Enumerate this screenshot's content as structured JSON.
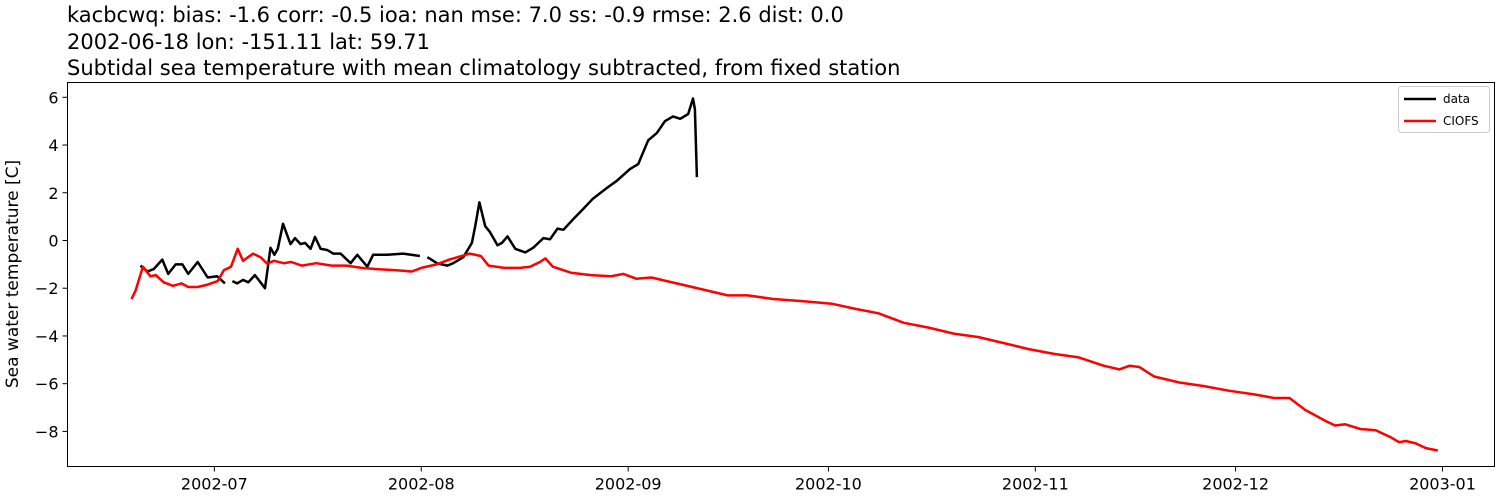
{
  "chart_data": {
    "type": "line",
    "title_lines": [
      "kacbcwq: bias: -1.6  corr: -0.5  ioa: nan  mse: 7.0  ss: -0.9  rmse: 2.6  dist: 0.0",
      "2002-06-18 lon: -151.11 lat: 59.71",
      "Subtidal sea temperature with mean climatology subtracted, from fixed station"
    ],
    "xlabel": "",
    "ylabel": "Sea water temperature [C]",
    "xlim": [
      "2002-06-09T00:00",
      "2003-01-08T19:00"
    ],
    "ylim": [
      -9.47,
      6.62
    ],
    "x_ticks": [
      {
        "date": "2002-07-01",
        "label": "2002-07"
      },
      {
        "date": "2002-08-01",
        "label": "2002-08"
      },
      {
        "date": "2002-09-01",
        "label": "2002-09"
      },
      {
        "date": "2002-10-01",
        "label": "2002-10"
      },
      {
        "date": "2002-11-01",
        "label": "2002-11"
      },
      {
        "date": "2002-12-01",
        "label": "2002-12"
      },
      {
        "date": "2003-01-01",
        "label": "2003-01"
      }
    ],
    "y_ticks": [
      6,
      4,
      2,
      0,
      -2,
      -4,
      -6,
      -8
    ],
    "y_tick_labels": [
      "6",
      "4",
      "2",
      "0",
      "−2",
      "−4",
      "−6",
      "−8"
    ],
    "grid": false,
    "legend_position": "top-right",
    "series": [
      {
        "name": "data",
        "color": "#000000",
        "points": [
          [
            "2002-06-19T22:00",
            -1.05
          ],
          [
            "2002-06-21T00:00",
            -1.3
          ],
          [
            "2002-06-21T22:00",
            -1.2
          ],
          [
            "2002-06-23T05:00",
            -0.8
          ],
          [
            "2002-06-24T02:00",
            -1.4
          ],
          [
            "2002-06-25T05:00",
            -1.0
          ],
          [
            "2002-06-26T05:00",
            -1.0
          ],
          [
            "2002-06-27T02:00",
            -1.4
          ],
          [
            "2002-06-28T12:00",
            -0.9
          ],
          [
            "2002-06-30T00:00",
            -1.55
          ],
          [
            "2002-07-01T10:00",
            -1.5
          ],
          [
            "2002-07-02T05:00",
            -1.7
          ],
          [
            "2002-07-02T14:00",
            -1.8
          ],
          [
            null,
            null
          ],
          [
            "2002-07-03T17:00",
            -1.7
          ],
          [
            "2002-07-04T10:00",
            -1.8
          ],
          [
            "2002-07-05T07:00",
            -1.65
          ],
          [
            "2002-07-06T02:00",
            -1.75
          ],
          [
            "2002-07-07T02:00",
            -1.45
          ],
          [
            "2002-07-07T22:00",
            -1.75
          ],
          [
            "2002-07-08T14:00",
            -2.0
          ],
          [
            "2002-07-09T10:00",
            -0.3
          ],
          [
            "2002-07-10T00:00",
            -0.6
          ],
          [
            "2002-07-10T12:00",
            -0.35
          ],
          [
            "2002-07-11T07:00",
            0.7
          ],
          [
            "2002-07-12T10:00",
            -0.15
          ],
          [
            "2002-07-13T02:00",
            0.1
          ],
          [
            "2002-07-13T22:00",
            -0.15
          ],
          [
            "2002-07-14T14:00",
            -0.1
          ],
          [
            "2002-07-15T10:00",
            -0.35
          ],
          [
            "2002-07-16T02:00",
            0.15
          ],
          [
            "2002-07-16T22:00",
            -0.35
          ],
          [
            "2002-07-17T22:00",
            -0.4
          ],
          [
            "2002-07-18T19:00",
            -0.55
          ],
          [
            "2002-07-19T22:00",
            -0.55
          ],
          [
            "2002-07-21T10:00",
            -0.95
          ],
          [
            "2002-07-22T10:00",
            -0.6
          ],
          [
            "2002-07-23T22:00",
            -1.1
          ],
          [
            "2002-07-24T19:00",
            -0.6
          ],
          [
            "2002-07-26T22:00",
            -0.6
          ],
          [
            "2002-07-29T07:00",
            -0.55
          ],
          [
            "2002-07-31T19:00",
            -0.65
          ],
          [
            null,
            null
          ],
          [
            "2002-08-01T22:00",
            -0.7
          ],
          [
            "2002-08-03T10:00",
            -0.96
          ],
          [
            "2002-08-04T22:00",
            -1.05
          ],
          [
            "2002-08-05T19:00",
            -0.95
          ],
          [
            "2002-08-07T07:00",
            -0.7
          ],
          [
            "2002-08-08T14:00",
            -0.1
          ],
          [
            "2002-08-09T02:00",
            0.6
          ],
          [
            "2002-08-09T17:00",
            1.6
          ],
          [
            "2002-08-10T14:00",
            0.6
          ],
          [
            "2002-08-11T07:00",
            0.35
          ],
          [
            "2002-08-12T10:00",
            -0.2
          ],
          [
            "2002-08-13T02:00",
            -0.1
          ],
          [
            "2002-08-13T22:00",
            0.17
          ],
          [
            "2002-08-15T02:00",
            -0.35
          ],
          [
            "2002-08-16T14:00",
            -0.5
          ],
          [
            "2002-08-17T19:00",
            -0.3
          ],
          [
            "2002-08-19T07:00",
            0.1
          ],
          [
            "2002-08-20T07:00",
            0.05
          ],
          [
            "2002-08-21T10:00",
            0.5
          ],
          [
            "2002-08-22T07:00",
            0.45
          ],
          [
            "2002-08-23T19:00",
            0.9
          ],
          [
            "2002-08-25T07:00",
            1.33
          ],
          [
            "2002-08-26T17:00",
            1.75
          ],
          [
            "2002-08-28T19:00",
            2.2
          ],
          [
            "2002-08-30T07:00",
            2.5
          ],
          [
            "2002-09-01T07:00",
            3.0
          ],
          [
            "2002-09-02T12:00",
            3.2
          ],
          [
            "2002-09-04T00:00",
            4.2
          ],
          [
            "2002-09-05T07:00",
            4.5
          ],
          [
            "2002-09-06T12:00",
            5.0
          ],
          [
            "2002-09-07T17:00",
            5.2
          ],
          [
            "2002-09-08T19:00",
            5.1
          ],
          [
            "2002-09-10T00:00",
            5.3
          ],
          [
            "2002-09-10T17:00",
            5.95
          ],
          [
            "2002-09-11T00:00",
            5.5
          ],
          [
            "2002-09-11T07:00",
            2.65
          ]
        ]
      },
      {
        "name": "CIOFS",
        "color": "#ff0000",
        "points": [
          [
            "2002-06-18T14:00",
            -2.45
          ],
          [
            "2002-06-19T05:00",
            -2.1
          ],
          [
            "2002-06-20T07:00",
            -1.1
          ],
          [
            "2002-06-21T10:00",
            -1.5
          ],
          [
            "2002-06-22T05:00",
            -1.45
          ],
          [
            "2002-06-23T10:00",
            -1.75
          ],
          [
            "2002-06-24T19:00",
            -1.9
          ],
          [
            "2002-06-26T02:00",
            -1.8
          ],
          [
            "2002-06-27T02:00",
            -1.95
          ],
          [
            "2002-06-28T12:00",
            -1.95
          ],
          [
            "2002-06-30T00:00",
            -1.85
          ],
          [
            "2002-07-01T12:00",
            -1.7
          ],
          [
            "2002-07-02T10:00",
            -1.25
          ],
          [
            "2002-07-03T12:00",
            -1.1
          ],
          [
            "2002-07-04T12:00",
            -0.35
          ],
          [
            "2002-07-05T07:00",
            -0.85
          ],
          [
            "2002-07-06T19:00",
            -0.55
          ],
          [
            "2002-07-07T22:00",
            -0.7
          ],
          [
            "2002-07-08T22:00",
            -0.97
          ],
          [
            "2002-07-09T22:00",
            -0.85
          ],
          [
            "2002-07-11T10:00",
            -0.95
          ],
          [
            "2002-07-12T12:00",
            -0.9
          ],
          [
            "2002-07-14T02:00",
            -1.05
          ],
          [
            "2002-07-16T07:00",
            -0.95
          ],
          [
            "2002-07-18T14:00",
            -1.05
          ],
          [
            "2002-07-20T19:00",
            -1.05
          ],
          [
            "2002-07-23T02:00",
            -1.15
          ],
          [
            "2002-07-25T07:00",
            -1.2
          ],
          [
            "2002-07-28T07:00",
            -1.25
          ],
          [
            "2002-07-30T14:00",
            -1.3
          ],
          [
            "2002-08-01T00:00",
            -1.15
          ],
          [
            "2002-08-03T07:00",
            -1.0
          ],
          [
            "2002-08-05T05:00",
            -0.8
          ],
          [
            "2002-08-08T07:00",
            -0.55
          ],
          [
            "2002-08-09T22:00",
            -0.65
          ],
          [
            "2002-08-11T02:00",
            -1.05
          ],
          [
            "2002-08-13T10:00",
            -1.15
          ],
          [
            "2002-08-15T19:00",
            -1.15
          ],
          [
            "2002-08-17T07:00",
            -1.1
          ],
          [
            "2002-08-18T19:00",
            -0.9
          ],
          [
            "2002-08-19T14:00",
            -0.75
          ],
          [
            "2002-08-20T17:00",
            -1.1
          ],
          [
            "2002-08-23T10:00",
            -1.35
          ],
          [
            "2002-08-26T10:00",
            -1.45
          ],
          [
            "2002-08-29T10:00",
            -1.5
          ],
          [
            "2002-08-31T07:00",
            -1.4
          ],
          [
            "2002-09-02T05:00",
            -1.6
          ],
          [
            "2002-09-04T12:00",
            -1.55
          ],
          [
            "2002-09-06T19:00",
            -1.7
          ],
          [
            "2002-09-09T02:00",
            -1.85
          ],
          [
            "2002-09-12T02:00",
            -2.05
          ],
          [
            "2002-09-15T22:00",
            -2.3
          ],
          [
            "2002-09-18T22:00",
            -2.3
          ],
          [
            "2002-09-22T17:00",
            -2.45
          ],
          [
            "2002-09-27T07:00",
            -2.55
          ],
          [
            "2002-10-01T12:00",
            -2.65
          ],
          [
            "2002-10-04T19:00",
            -2.85
          ],
          [
            "2002-10-08T12:00",
            -3.05
          ],
          [
            "2002-10-12T07:00",
            -3.45
          ],
          [
            "2002-10-16T00:00",
            -3.65
          ],
          [
            "2002-10-19T19:00",
            -3.9
          ],
          [
            "2002-10-23T12:00",
            -4.05
          ],
          [
            "2002-10-27T07:00",
            -4.3
          ],
          [
            "2002-10-31T00:00",
            -4.55
          ],
          [
            "2002-11-03T19:00",
            -4.75
          ],
          [
            "2002-11-07T12:00",
            -4.9
          ],
          [
            "2002-11-11T07:00",
            -5.25
          ],
          [
            "2002-11-13T14:00",
            -5.4
          ],
          [
            "2002-11-15T02:00",
            -5.25
          ],
          [
            "2002-11-16T14:00",
            -5.3
          ],
          [
            "2002-11-18T19:00",
            -5.7
          ],
          [
            "2002-11-22T14:00",
            -5.95
          ],
          [
            "2002-11-26T07:00",
            -6.1
          ],
          [
            "2002-11-30T02:00",
            -6.3
          ],
          [
            "2002-12-03T19:00",
            -6.45
          ],
          [
            "2002-12-06T19:00",
            -6.6
          ],
          [
            "2002-12-09T02:00",
            -6.6
          ],
          [
            "2002-12-11T10:00",
            -7.1
          ],
          [
            "2002-12-14T10:00",
            -7.55
          ],
          [
            "2002-12-15T22:00",
            -7.75
          ],
          [
            "2002-12-17T10:00",
            -7.7
          ],
          [
            "2002-12-19T17:00",
            -7.9
          ],
          [
            "2002-12-22T00:00",
            -7.95
          ],
          [
            "2002-12-24T07:00",
            -8.25
          ],
          [
            "2002-12-25T12:00",
            -8.45
          ],
          [
            "2002-12-26T12:00",
            -8.4
          ],
          [
            "2002-12-28T00:00",
            -8.5
          ],
          [
            "2002-12-29T12:00",
            -8.7
          ],
          [
            "2002-12-31T07:00",
            -8.8
          ]
        ]
      }
    ]
  }
}
